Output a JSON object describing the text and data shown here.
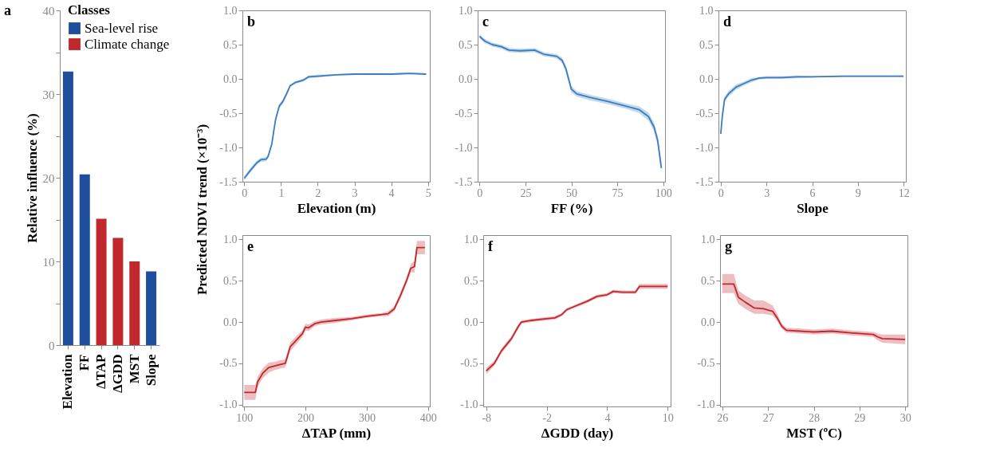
{
  "chart_data": [
    {
      "type": "bar",
      "ylabel": "Relative influence (%)",
      "legend_title": "Classes",
      "legend": "top right",
      "annotations": [
        "a"
      ],
      "categories": [
        "Elevation",
        "FF",
        "ΔTAP",
        "ΔGDD",
        "MST",
        "Slope"
      ],
      "series": [
        {
          "name": "Sea-level rise",
          "color": "#1f4e9c",
          "values": [
            32.7,
            20.4,
            null,
            null,
            null,
            8.8
          ]
        },
        {
          "name": "Climate change",
          "color": "#c0282d",
          "values": [
            null,
            null,
            15.1,
            12.8,
            10.0,
            null
          ]
        }
      ],
      "ylim": [
        0,
        40
      ],
      "yticks": [
        0,
        {
          "value": 5,
          "label": null
        },
        10,
        {
          "value": 15,
          "label": null
        },
        20,
        {
          "value": 25,
          "label": null
        },
        30,
        {
          "value": 35,
          "label": null
        },
        40
      ],
      "grid": false
    },
    {
      "type": "line",
      "xlabel": "Elevation (m)",
      "ylabel": "Predicted NDVI trend  (×10⁻³)",
      "annotations": [
        "b"
      ],
      "series": [
        {
          "color": "#3a7dc0",
          "x": [
            0,
            0.1,
            0.25,
            0.35,
            0.45,
            0.6,
            0.65,
            0.75,
            0.85,
            0.95,
            1.05,
            1.15,
            1.25,
            1.4,
            1.6,
            1.75,
            2.0,
            2.5,
            3,
            3.5,
            4,
            4.5,
            4.95
          ],
          "values": [
            -1.45,
            -1.38,
            -1.28,
            -1.22,
            -1.18,
            -1.17,
            -1.13,
            -0.95,
            -0.6,
            -0.4,
            -0.33,
            -0.22,
            -0.1,
            -0.05,
            -0.02,
            0.03,
            0.04,
            0.06,
            0.07,
            0.07,
            0.07,
            0.08,
            0.07
          ],
          "lower": [
            -1.48,
            -1.41,
            -1.31,
            -1.25,
            -1.21,
            -1.2,
            -1.16,
            -0.98,
            -0.63,
            -0.43,
            -0.36,
            -0.25,
            -0.12,
            -0.07,
            -0.04,
            0.01,
            0.02,
            0.05,
            0.06,
            0.06,
            0.06,
            0.07,
            0.06
          ],
          "upper": [
            -1.42,
            -1.35,
            -1.25,
            -1.19,
            -1.15,
            -1.14,
            -1.1,
            -0.92,
            -0.57,
            -0.37,
            -0.3,
            -0.19,
            -0.08,
            -0.03,
            0.0,
            0.05,
            0.06,
            0.07,
            0.08,
            0.08,
            0.08,
            0.09,
            0.08
          ]
        }
      ],
      "xlim": [
        -0.05,
        5.05
      ],
      "xticks": [
        0,
        1,
        2,
        3,
        4,
        5
      ],
      "ylim": [
        -1.5,
        1.0
      ],
      "yticks": [
        {
          "value": -1.5,
          "label": "-1.5"
        },
        {
          "value": -1,
          "label": "-1.0"
        },
        {
          "value": -0.5,
          "label": "-0.5"
        },
        {
          "value": 0,
          "label": "0.0"
        },
        {
          "value": 0.5,
          "label": "0.5"
        },
        {
          "value": 1,
          "label": "1.0"
        }
      ],
      "grid": false
    },
    {
      "type": "line",
      "xlabel": "FF (%)",
      "annotations": [
        "c"
      ],
      "series": [
        {
          "color": "#3a7dc0",
          "x": [
            0,
            3,
            7,
            12,
            16,
            22,
            30,
            35,
            42,
            45,
            47,
            48.5,
            50,
            53,
            60,
            70,
            80,
            87,
            92,
            95,
            97,
            99
          ],
          "values": [
            0.62,
            0.55,
            0.5,
            0.47,
            0.42,
            0.41,
            0.42,
            0.36,
            0.33,
            0.27,
            0.15,
            0.0,
            -0.15,
            -0.22,
            -0.27,
            -0.33,
            -0.4,
            -0.45,
            -0.55,
            -0.7,
            -0.9,
            -1.3
          ],
          "lower": [
            0.59,
            0.52,
            0.47,
            0.44,
            0.39,
            0.38,
            0.39,
            0.33,
            0.3,
            0.23,
            0.1,
            -0.05,
            -0.2,
            -0.26,
            -0.31,
            -0.37,
            -0.44,
            -0.5,
            -0.61,
            -0.76,
            -0.97,
            -1.38
          ],
          "upper": [
            0.65,
            0.58,
            0.53,
            0.5,
            0.45,
            0.44,
            0.45,
            0.39,
            0.36,
            0.31,
            0.2,
            0.05,
            -0.1,
            -0.18,
            -0.23,
            -0.29,
            -0.36,
            -0.4,
            -0.49,
            -0.64,
            -0.83,
            -1.22
          ]
        }
      ],
      "xlim": [
        -1,
        101
      ],
      "xticks": [
        0,
        25,
        50,
        75,
        100
      ],
      "ylim": [
        -1.5,
        1.0
      ],
      "yticks": [
        {
          "value": -1.5,
          "label": "-1.5"
        },
        {
          "value": -1,
          "label": "-1.0"
        },
        {
          "value": -0.5,
          "label": "-0.5"
        },
        {
          "value": 0,
          "label": "0.0"
        },
        {
          "value": 0.5,
          "label": "0.5"
        },
        {
          "value": 1,
          "label": "1.0"
        }
      ],
      "grid": false
    },
    {
      "type": "line",
      "xlabel": "Slope",
      "annotations": [
        "d"
      ],
      "series": [
        {
          "color": "#3a7dc0",
          "x": [
            0,
            0.1,
            0.25,
            0.5,
            1,
            1.5,
            2,
            2.5,
            3,
            4,
            5,
            6,
            8,
            10,
            12
          ],
          "values": [
            -0.8,
            -0.55,
            -0.3,
            -0.22,
            -0.12,
            -0.07,
            -0.02,
            0.01,
            0.02,
            0.02,
            0.03,
            0.03,
            0.04,
            0.04,
            0.04
          ],
          "lower": [
            -0.84,
            -0.59,
            -0.34,
            -0.26,
            -0.16,
            -0.1,
            -0.05,
            -0.01,
            0.0,
            0.0,
            0.01,
            0.02,
            0.03,
            0.03,
            0.03
          ],
          "upper": [
            -0.76,
            -0.51,
            -0.26,
            -0.18,
            -0.08,
            -0.04,
            0.01,
            0.03,
            0.04,
            0.04,
            0.05,
            0.04,
            0.05,
            0.05,
            0.05
          ]
        }
      ],
      "xlim": [
        -0.15,
        12.15
      ],
      "xticks": [
        0,
        3,
        6,
        9,
        12
      ],
      "ylim": [
        -1.5,
        1.0
      ],
      "yticks": [
        {
          "value": -1.5,
          "label": "-1.5"
        },
        {
          "value": -1,
          "label": "-1.0"
        },
        {
          "value": -0.5,
          "label": "-0.5"
        },
        {
          "value": 0,
          "label": "0.0"
        },
        {
          "value": 0.5,
          "label": "0.5"
        },
        {
          "value": 1,
          "label": "1.0"
        }
      ],
      "grid": false
    },
    {
      "type": "line",
      "xlabel": "ΔTAP (mm)",
      "annotations": [
        "e"
      ],
      "series": [
        {
          "color": "#c1272d",
          "x": [
            100,
            118,
            122,
            130,
            140,
            150,
            160,
            167,
            175,
            185,
            195,
            200,
            205,
            215,
            225,
            250,
            275,
            300,
            325,
            335,
            345,
            355,
            365,
            372,
            378,
            382,
            395
          ],
          "values": [
            -0.85,
            -0.85,
            -0.72,
            -0.62,
            -0.55,
            -0.53,
            -0.51,
            -0.5,
            -0.3,
            -0.22,
            -0.14,
            -0.06,
            -0.07,
            -0.02,
            0.0,
            0.02,
            0.04,
            0.07,
            0.09,
            0.1,
            0.16,
            0.32,
            0.5,
            0.65,
            0.67,
            0.9,
            0.9
          ],
          "lower": [
            -0.94,
            -0.94,
            -0.78,
            -0.68,
            -0.61,
            -0.58,
            -0.56,
            -0.55,
            -0.35,
            -0.27,
            -0.18,
            -0.1,
            -0.11,
            -0.05,
            -0.03,
            -0.01,
            0.02,
            0.05,
            0.07,
            0.07,
            0.13,
            0.28,
            0.46,
            0.6,
            0.6,
            0.82,
            0.82
          ],
          "upper": [
            -0.76,
            -0.76,
            -0.66,
            -0.56,
            -0.49,
            -0.48,
            -0.46,
            -0.45,
            -0.25,
            -0.17,
            -0.1,
            -0.02,
            -0.03,
            0.01,
            0.03,
            0.05,
            0.06,
            0.09,
            0.11,
            0.13,
            0.19,
            0.36,
            0.54,
            0.7,
            0.74,
            0.98,
            0.98
          ]
        }
      ],
      "xlim": [
        97,
        403
      ],
      "xticks": [
        100,
        200,
        300,
        400
      ],
      "ylim": [
        -1.02,
        1.05
      ],
      "yticks": [
        {
          "value": -1,
          "label": "-1.0"
        },
        {
          "value": -0.5,
          "label": "-0.5"
        },
        {
          "value": 0,
          "label": "0.0"
        },
        {
          "value": 0.5,
          "label": "0.5"
        },
        {
          "value": 1,
          "label": "1.0"
        }
      ],
      "grid": false
    },
    {
      "type": "line",
      "xlabel": "ΔGDD (day)",
      "annotations": [
        "f"
      ],
      "series": [
        {
          "color": "#c1272d",
          "x": [
            -8,
            -7.2,
            -6.5,
            -5.5,
            -4.8,
            -4.5,
            -3.5,
            -2,
            -1.2,
            -0.5,
            0,
            1,
            2,
            3,
            4,
            4.6,
            5.5,
            6.8,
            7.2,
            10
          ],
          "values": [
            -0.59,
            -0.5,
            -0.35,
            -0.2,
            -0.05,
            0.0,
            0.02,
            0.04,
            0.05,
            0.09,
            0.15,
            0.2,
            0.25,
            0.31,
            0.33,
            0.37,
            0.36,
            0.36,
            0.43,
            0.43
          ],
          "lower": [
            -0.63,
            -0.53,
            -0.38,
            -0.23,
            -0.08,
            -0.02,
            0.0,
            0.02,
            0.03,
            0.07,
            0.13,
            0.18,
            0.23,
            0.29,
            0.31,
            0.35,
            0.34,
            0.34,
            0.4,
            0.4
          ],
          "upper": [
            -0.55,
            -0.47,
            -0.32,
            -0.17,
            -0.02,
            0.02,
            0.04,
            0.06,
            0.07,
            0.11,
            0.17,
            0.22,
            0.27,
            0.33,
            0.35,
            0.39,
            0.38,
            0.38,
            0.46,
            0.46
          ]
        }
      ],
      "xlim": [
        -8.3,
        10.3
      ],
      "xticks": [
        -8,
        -2,
        4,
        10
      ],
      "ylim": [
        -1.02,
        1.05
      ],
      "yticks": [
        {
          "value": -1,
          "label": "-1.0"
        },
        {
          "value": -0.5,
          "label": "-0.5"
        },
        {
          "value": 0,
          "label": "0.0"
        },
        {
          "value": 0.5,
          "label": "0.5"
        },
        {
          "value": 1,
          "label": "1.0"
        }
      ],
      "grid": false
    },
    {
      "type": "line",
      "xlabel": "MST (ºC)",
      "annotations": [
        "g"
      ],
      "series": [
        {
          "color": "#c1272d",
          "x": [
            26,
            26.25,
            26.35,
            26.5,
            26.7,
            26.9,
            27.1,
            27.2,
            27.3,
            27.4,
            27.7,
            28,
            28.4,
            28.8,
            29.3,
            29.4,
            29.5,
            30
          ],
          "values": [
            0.46,
            0.46,
            0.3,
            0.24,
            0.17,
            0.16,
            0.13,
            0.05,
            -0.05,
            -0.1,
            -0.11,
            -0.12,
            -0.11,
            -0.13,
            -0.15,
            -0.18,
            -0.2,
            -0.21
          ],
          "lower": [
            0.35,
            0.35,
            0.22,
            0.16,
            0.1,
            0.1,
            0.08,
            0.01,
            -0.08,
            -0.13,
            -0.14,
            -0.15,
            -0.14,
            -0.16,
            -0.18,
            -0.22,
            -0.25,
            -0.27
          ],
          "upper": [
            0.58,
            0.58,
            0.38,
            0.32,
            0.26,
            0.26,
            0.2,
            0.1,
            -0.02,
            -0.07,
            -0.08,
            -0.09,
            -0.08,
            -0.1,
            -0.12,
            -0.14,
            -0.15,
            -0.15
          ]
        }
      ],
      "xlim": [
        25.95,
        30.05
      ],
      "xticks": [
        26,
        27,
        28,
        29,
        30
      ],
      "ylim": [
        -1.02,
        1.05
      ],
      "yticks": [
        {
          "value": -1,
          "label": "-1.0"
        },
        {
          "value": -0.5,
          "label": "-0.5"
        },
        {
          "value": 0,
          "label": "0.0"
        },
        {
          "value": 0.5,
          "label": "0.5"
        },
        {
          "value": 1,
          "label": "1.0"
        }
      ],
      "grid": false
    }
  ]
}
